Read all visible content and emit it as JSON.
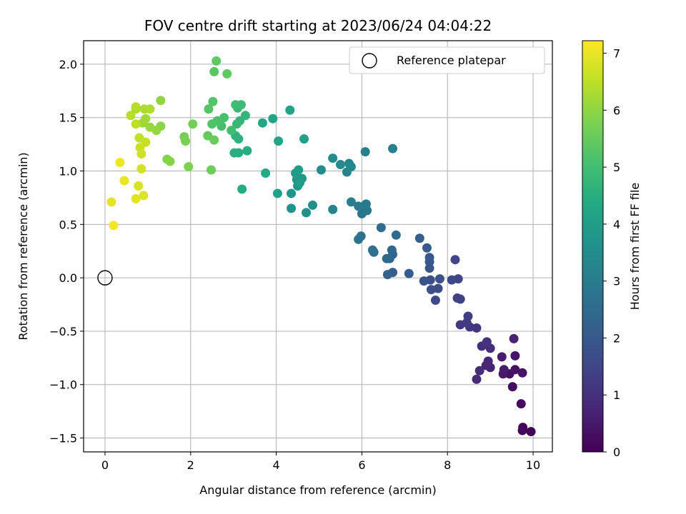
{
  "chart_data": {
    "type": "scatter",
    "title": "FOV centre drift starting at 2023/06/24 04:04:22",
    "xlabel": "Angular distance from reference (arcmin)",
    "ylabel": "Rotation from reference (arcmin)",
    "xlim": [
      -0.5,
      10.45
    ],
    "ylim": [
      -1.63,
      2.22
    ],
    "xticks": [
      0,
      2,
      4,
      6,
      8,
      10
    ],
    "yticks": [
      -1.5,
      -1.0,
      -0.5,
      0.0,
      0.5,
      1.0,
      1.5,
      2.0
    ],
    "xtick_labels": [
      "0",
      "2",
      "4",
      "6",
      "8",
      "10"
    ],
    "ytick_labels": [
      "−1.5",
      "−1.0",
      "−0.5",
      "0.0",
      "0.5",
      "1.0",
      "1.5",
      "2.0"
    ],
    "grid": true,
    "legend": {
      "position": "upper-right",
      "entries": [
        "Reference platepar"
      ]
    },
    "colorbar": {
      "label": "Hours from first FF file",
      "range": [
        0,
        7.22
      ],
      "ticks": [
        0,
        1,
        2,
        3,
        4,
        5,
        6,
        7
      ],
      "tick_labels": [
        "0",
        "1",
        "2",
        "3",
        "4",
        "5",
        "6",
        "7"
      ],
      "colormap": "viridis"
    },
    "reference_point": {
      "name": "Reference platepar",
      "x": 0.0,
      "y": 0.0
    },
    "series": [
      {
        "color_by": "hours",
        "points": [
          {
            "x": 9.95,
            "y": -1.44,
            "h": 0.05
          },
          {
            "x": 9.75,
            "y": -1.43,
            "h": 0.1
          },
          {
            "x": 9.76,
            "y": -1.4,
            "h": 0.15
          },
          {
            "x": 9.72,
            "y": -1.18,
            "h": 0.2
          },
          {
            "x": 9.52,
            "y": -1.02,
            "h": 0.25
          },
          {
            "x": 9.45,
            "y": -0.9,
            "h": 0.3
          },
          {
            "x": 9.58,
            "y": -0.86,
            "h": 0.35
          },
          {
            "x": 9.75,
            "y": -0.89,
            "h": 0.4
          },
          {
            "x": 9.58,
            "y": -0.73,
            "h": 0.45
          },
          {
            "x": 9.3,
            "y": -0.9,
            "h": 0.5
          },
          {
            "x": 9.32,
            "y": -0.86,
            "h": 0.55
          },
          {
            "x": 9.27,
            "y": -0.74,
            "h": 0.6
          },
          {
            "x": 9.55,
            "y": -0.57,
            "h": 0.65
          },
          {
            "x": 9.0,
            "y": -0.84,
            "h": 0.7
          },
          {
            "x": 8.9,
            "y": -0.82,
            "h": 0.75
          },
          {
            "x": 8.95,
            "y": -0.78,
            "h": 0.8
          },
          {
            "x": 8.68,
            "y": -0.95,
            "h": 0.85
          },
          {
            "x": 8.75,
            "y": -0.87,
            "h": 0.9
          },
          {
            "x": 9.0,
            "y": -0.66,
            "h": 0.95
          },
          {
            "x": 8.8,
            "y": -0.64,
            "h": 1.0
          },
          {
            "x": 8.92,
            "y": -0.6,
            "h": 1.05
          },
          {
            "x": 8.68,
            "y": -0.47,
            "h": 1.1
          },
          {
            "x": 8.52,
            "y": -0.46,
            "h": 1.15
          },
          {
            "x": 8.3,
            "y": -0.44,
            "h": 1.2
          },
          {
            "x": 8.45,
            "y": -0.42,
            "h": 1.25
          },
          {
            "x": 8.48,
            "y": -0.36,
            "h": 1.3
          },
          {
            "x": 8.3,
            "y": -0.2,
            "h": 1.35
          },
          {
            "x": 8.23,
            "y": -0.19,
            "h": 1.4
          },
          {
            "x": 8.25,
            "y": -0.01,
            "h": 1.45
          },
          {
            "x": 8.18,
            "y": 0.17,
            "h": 1.5
          },
          {
            "x": 8.1,
            "y": -0.02,
            "h": 1.55
          },
          {
            "x": 7.72,
            "y": -0.21,
            "h": 1.6
          },
          {
            "x": 7.78,
            "y": -0.1,
            "h": 1.65
          },
          {
            "x": 7.62,
            "y": -0.11,
            "h": 1.7
          },
          {
            "x": 7.6,
            "y": -0.02,
            "h": 1.75
          },
          {
            "x": 7.82,
            "y": -0.01,
            "h": 1.8
          },
          {
            "x": 7.45,
            "y": -0.03,
            "h": 1.85
          },
          {
            "x": 7.58,
            "y": 0.09,
            "h": 1.9
          },
          {
            "x": 7.58,
            "y": 0.15,
            "h": 1.95
          },
          {
            "x": 7.58,
            "y": 0.19,
            "h": 2.0
          },
          {
            "x": 7.52,
            "y": 0.28,
            "h": 2.05
          },
          {
            "x": 7.35,
            "y": 0.37,
            "h": 2.1
          },
          {
            "x": 7.1,
            "y": 0.04,
            "h": 2.15
          },
          {
            "x": 6.72,
            "y": 0.05,
            "h": 2.2
          },
          {
            "x": 6.6,
            "y": 0.03,
            "h": 2.25
          },
          {
            "x": 6.65,
            "y": 0.18,
            "h": 2.3
          },
          {
            "x": 6.72,
            "y": 0.22,
            "h": 2.35
          },
          {
            "x": 6.7,
            "y": 0.26,
            "h": 2.4
          },
          {
            "x": 6.58,
            "y": 0.18,
            "h": 2.45
          },
          {
            "x": 6.8,
            "y": 0.4,
            "h": 2.5
          },
          {
            "x": 6.45,
            "y": 0.47,
            "h": 2.55
          },
          {
            "x": 6.28,
            "y": 0.24,
            "h": 2.6
          },
          {
            "x": 6.25,
            "y": 0.26,
            "h": 2.65
          },
          {
            "x": 5.98,
            "y": 0.39,
            "h": 2.7
          },
          {
            "x": 5.92,
            "y": 0.36,
            "h": 2.75
          },
          {
            "x": 6.0,
            "y": 0.6,
            "h": 2.8
          },
          {
            "x": 6.12,
            "y": 0.63,
            "h": 2.85
          },
          {
            "x": 6.05,
            "y": 0.67,
            "h": 2.9
          },
          {
            "x": 6.1,
            "y": 0.69,
            "h": 2.95
          },
          {
            "x": 5.92,
            "y": 0.67,
            "h": 3.0
          },
          {
            "x": 5.75,
            "y": 0.71,
            "h": 3.05
          },
          {
            "x": 6.08,
            "y": 1.18,
            "h": 3.1
          },
          {
            "x": 6.72,
            "y": 1.21,
            "h": 3.15
          },
          {
            "x": 5.32,
            "y": 0.64,
            "h": 3.2
          },
          {
            "x": 5.65,
            "y": 0.99,
            "h": 3.25
          },
          {
            "x": 5.7,
            "y": 1.07,
            "h": 3.3
          },
          {
            "x": 5.75,
            "y": 1.04,
            "h": 3.35
          },
          {
            "x": 5.5,
            "y": 1.06,
            "h": 3.4
          },
          {
            "x": 5.32,
            "y": 1.12,
            "h": 3.45
          },
          {
            "x": 5.05,
            "y": 1.01,
            "h": 3.5
          },
          {
            "x": 4.85,
            "y": 0.68,
            "h": 3.55
          },
          {
            "x": 4.7,
            "y": 0.61,
            "h": 3.6
          },
          {
            "x": 4.35,
            "y": 0.65,
            "h": 3.65
          },
          {
            "x": 4.35,
            "y": 0.79,
            "h": 3.7
          },
          {
            "x": 4.5,
            "y": 0.86,
            "h": 3.75
          },
          {
            "x": 4.48,
            "y": 0.92,
            "h": 3.8
          },
          {
            "x": 4.6,
            "y": 0.93,
            "h": 3.85
          },
          {
            "x": 4.45,
            "y": 0.98,
            "h": 3.9
          },
          {
            "x": 4.52,
            "y": 1.01,
            "h": 3.95
          },
          {
            "x": 4.55,
            "y": 0.89,
            "h": 4.0
          },
          {
            "x": 4.03,
            "y": 0.79,
            "h": 4.05
          },
          {
            "x": 4.65,
            "y": 1.3,
            "h": 4.1
          },
          {
            "x": 4.32,
            "y": 1.57,
            "h": 4.15
          },
          {
            "x": 4.05,
            "y": 1.28,
            "h": 4.2
          },
          {
            "x": 3.92,
            "y": 1.49,
            "h": 4.25
          },
          {
            "x": 3.68,
            "y": 1.45,
            "h": 4.3
          },
          {
            "x": 3.75,
            "y": 0.98,
            "h": 4.35
          },
          {
            "x": 3.2,
            "y": 0.83,
            "h": 4.4
          },
          {
            "x": 3.32,
            "y": 1.19,
            "h": 4.45
          },
          {
            "x": 3.12,
            "y": 1.17,
            "h": 4.5
          },
          {
            "x": 3.02,
            "y": 1.17,
            "h": 4.55
          },
          {
            "x": 3.12,
            "y": 1.3,
            "h": 4.6
          },
          {
            "x": 3.05,
            "y": 1.33,
            "h": 4.65
          },
          {
            "x": 3.15,
            "y": 1.47,
            "h": 4.7
          },
          {
            "x": 3.28,
            "y": 1.52,
            "h": 4.75
          },
          {
            "x": 3.08,
            "y": 1.44,
            "h": 4.8
          },
          {
            "x": 3.1,
            "y": 1.59,
            "h": 4.85
          },
          {
            "x": 3.18,
            "y": 1.62,
            "h": 4.9
          },
          {
            "x": 3.05,
            "y": 1.62,
            "h": 4.95
          },
          {
            "x": 2.95,
            "y": 1.38,
            "h": 5.0
          },
          {
            "x": 2.72,
            "y": 1.42,
            "h": 5.05
          },
          {
            "x": 2.78,
            "y": 1.5,
            "h": 5.1
          },
          {
            "x": 2.62,
            "y": 1.47,
            "h": 5.15
          },
          {
            "x": 2.5,
            "y": 1.44,
            "h": 5.2
          },
          {
            "x": 2.52,
            "y": 1.65,
            "h": 5.25
          },
          {
            "x": 2.42,
            "y": 1.58,
            "h": 5.3
          },
          {
            "x": 2.55,
            "y": 1.93,
            "h": 5.35
          },
          {
            "x": 2.6,
            "y": 2.03,
            "h": 5.4
          },
          {
            "x": 2.85,
            "y": 1.91,
            "h": 5.45
          },
          {
            "x": 2.4,
            "y": 1.33,
            "h": 5.5
          },
          {
            "x": 2.55,
            "y": 1.29,
            "h": 5.55
          },
          {
            "x": 2.48,
            "y": 1.01,
            "h": 5.6
          },
          {
            "x": 2.05,
            "y": 1.44,
            "h": 5.65
          },
          {
            "x": 1.85,
            "y": 1.32,
            "h": 5.7
          },
          {
            "x": 1.88,
            "y": 1.28,
            "h": 5.75
          },
          {
            "x": 1.95,
            "y": 1.04,
            "h": 5.8
          },
          {
            "x": 1.45,
            "y": 1.11,
            "h": 5.85
          },
          {
            "x": 1.52,
            "y": 1.09,
            "h": 5.9
          },
          {
            "x": 1.3,
            "y": 1.42,
            "h": 5.95
          },
          {
            "x": 1.3,
            "y": 1.66,
            "h": 6.0
          },
          {
            "x": 1.2,
            "y": 1.38,
            "h": 6.05
          },
          {
            "x": 1.05,
            "y": 1.41,
            "h": 6.1
          },
          {
            "x": 0.88,
            "y": 1.45,
            "h": 6.15
          },
          {
            "x": 0.95,
            "y": 1.49,
            "h": 6.2
          },
          {
            "x": 0.72,
            "y": 1.58,
            "h": 6.25
          },
          {
            "x": 0.92,
            "y": 1.58,
            "h": 6.3
          },
          {
            "x": 1.05,
            "y": 1.58,
            "h": 6.35
          },
          {
            "x": 0.72,
            "y": 1.6,
            "h": 6.4
          },
          {
            "x": 0.6,
            "y": 1.52,
            "h": 6.45
          },
          {
            "x": 0.72,
            "y": 1.44,
            "h": 6.5
          },
          {
            "x": 0.8,
            "y": 1.31,
            "h": 6.55
          },
          {
            "x": 0.95,
            "y": 1.27,
            "h": 6.6
          },
          {
            "x": 0.82,
            "y": 1.22,
            "h": 6.65
          },
          {
            "x": 0.85,
            "y": 1.16,
            "h": 6.7
          },
          {
            "x": 0.85,
            "y": 1.02,
            "h": 6.75
          },
          {
            "x": 0.78,
            "y": 0.86,
            "h": 6.8
          },
          {
            "x": 0.9,
            "y": 0.77,
            "h": 6.85
          },
          {
            "x": 0.72,
            "y": 0.74,
            "h": 6.9
          },
          {
            "x": 0.15,
            "y": 0.71,
            "h": 6.95
          },
          {
            "x": 0.45,
            "y": 0.91,
            "h": 7.0
          },
          {
            "x": 0.35,
            "y": 1.08,
            "h": 7.05
          },
          {
            "x": 0.2,
            "y": 0.49,
            "h": 7.1
          }
        ]
      }
    ]
  }
}
